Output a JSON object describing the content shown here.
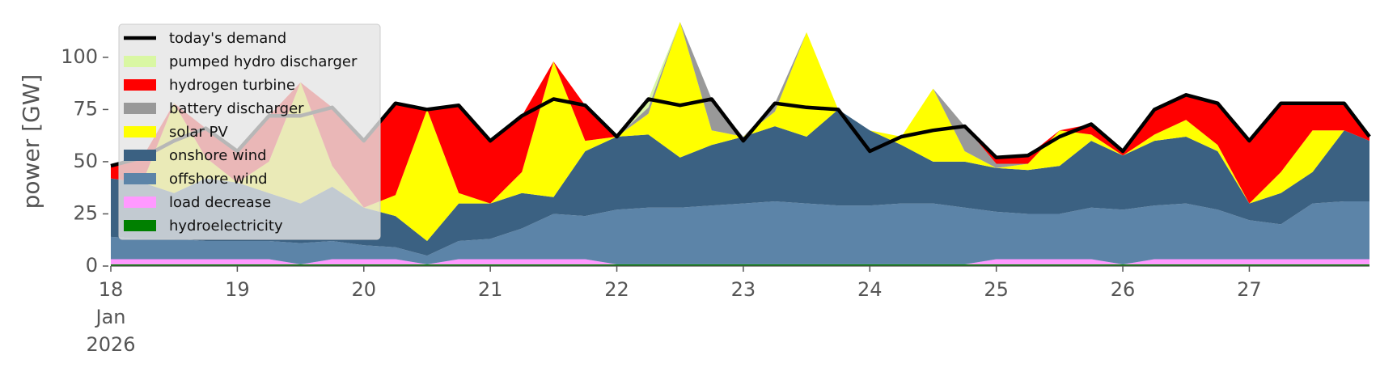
{
  "chart_data": {
    "type": "stacked_area",
    "ylabel": "power [GW]",
    "x": [
      18,
      18.25,
      18.5,
      18.75,
      19,
      19.25,
      19.5,
      19.75,
      20,
      20.25,
      20.5,
      20.75,
      21,
      21.25,
      21.5,
      21.75,
      22,
      22.25,
      22.5,
      22.75,
      23,
      23.25,
      23.5,
      23.75,
      24,
      24.25,
      24.5,
      24.75,
      25,
      25.25,
      25.5,
      25.75,
      26,
      26.25,
      26.5,
      26.75,
      27,
      27.25,
      27.5,
      27.75,
      27.95
    ],
    "xlim": [
      18,
      27.95
    ],
    "xticks": [
      {
        "value": 18,
        "label": "18\nJan\n2026"
      },
      19,
      20,
      21,
      22,
      23,
      24,
      25,
      26,
      27
    ],
    "ylim": [
      0,
      117
    ],
    "yticks": [
      0,
      25,
      50,
      75,
      100
    ],
    "legend": "upper left",
    "series": [
      {
        "name": "today's demand",
        "kind": "line",
        "color": "#000000",
        "values": [
          48,
          52,
          60,
          66,
          55,
          72,
          72,
          76,
          60,
          78,
          75,
          77,
          60,
          72,
          80,
          77,
          62,
          80,
          77,
          80,
          60,
          78,
          76,
          75,
          55,
          62,
          65,
          67,
          52,
          53,
          62,
          68,
          55,
          75,
          82,
          78,
          60,
          78,
          78,
          78,
          62
        ]
      },
      {
        "name": "pumped hydro discharger",
        "kind": "area",
        "color": "#d9f7a3",
        "values": [
          0,
          0,
          0,
          0,
          0,
          0,
          0,
          0,
          0,
          0,
          0,
          0,
          0,
          0,
          0,
          0,
          0,
          4,
          0,
          0,
          0,
          0,
          0,
          0,
          0,
          0,
          0,
          0,
          0,
          0,
          0,
          0,
          0,
          0,
          0,
          0,
          0,
          0,
          0,
          0,
          0
        ]
      },
      {
        "name": "hydrogen turbine",
        "kind": "area",
        "color": "#ff0000",
        "values": [
          6,
          12,
          0,
          14,
          15,
          22,
          0,
          28,
          32,
          44,
          0,
          42,
          30,
          27,
          0,
          17,
          0,
          0,
          0,
          0,
          0,
          0,
          0,
          0,
          0,
          0,
          0,
          0,
          3,
          4,
          0,
          5,
          2,
          12,
          12,
          20,
          30,
          33,
          13,
          13,
          2
        ]
      },
      {
        "name": "battery discharger",
        "kind": "area",
        "color": "#999999",
        "values": [
          0,
          0,
          0,
          0,
          0,
          0,
          0,
          0,
          0,
          0,
          0,
          0,
          0,
          0,
          0,
          0,
          0,
          3,
          0,
          15,
          0,
          4,
          0,
          0,
          0,
          0,
          0,
          12,
          2,
          0,
          0,
          0,
          0,
          0,
          0,
          0,
          0,
          0,
          0,
          0,
          0
        ]
      },
      {
        "name": "solar PV",
        "kind": "area",
        "color": "#ffff00",
        "values": [
          0,
          0,
          43,
          10,
          0,
          15,
          58,
          10,
          0,
          10,
          63,
          5,
          0,
          10,
          65,
          5,
          0,
          10,
          65,
          7,
          0,
          7,
          50,
          0,
          0,
          4,
          35,
          5,
          0,
          3,
          17,
          3,
          0,
          3,
          8,
          3,
          0,
          10,
          20,
          0,
          0
        ]
      },
      {
        "name": "onshore wind",
        "kind": "area",
        "color": "#3b6182",
        "values": [
          28,
          27,
          22,
          30,
          28,
          23,
          19,
          26,
          18,
          15,
          7,
          18,
          17,
          17,
          8,
          31,
          35,
          35,
          24,
          29,
          32,
          36,
          32,
          46,
          36,
          28,
          20,
          22,
          21,
          21,
          23,
          32,
          26,
          31,
          32,
          28,
          8,
          15,
          15,
          34,
          29
        ]
      },
      {
        "name": "offshore wind",
        "kind": "area",
        "color": "#5c84a8",
        "values": [
          10.7,
          9.7,
          9.7,
          8.7,
          8.7,
          8.7,
          10.2,
          8.7,
          6.7,
          5.7,
          4.2,
          8.7,
          9.7,
          14.7,
          21.7,
          20.7,
          26.2,
          27.2,
          27.2,
          28.2,
          29.2,
          30.2,
          29.2,
          28.2,
          28.2,
          29.2,
          29.2,
          27.2,
          22.7,
          21.7,
          21.7,
          24.7,
          26.2,
          25.7,
          26.7,
          23.7,
          18.7,
          16.7,
          26.7,
          27.7,
          27.7
        ]
      },
      {
        "name": "load decrease",
        "kind": "area",
        "color": "#ff99ff",
        "values": [
          2.5,
          2.5,
          2.5,
          2.5,
          2.5,
          2.5,
          0,
          2.5,
          2.5,
          2.5,
          0,
          2.5,
          2.5,
          2.5,
          2.5,
          2.5,
          0,
          0,
          0,
          0,
          0,
          0,
          0,
          0,
          0,
          0,
          0,
          0,
          2.5,
          2.5,
          2.5,
          2.5,
          0,
          2.5,
          2.5,
          2.5,
          2.5,
          2.5,
          2.5,
          2.5,
          2.5
        ]
      },
      {
        "name": "hydroelectricity",
        "kind": "area",
        "color": "#008000",
        "values": [
          0.8,
          0.8,
          0.8,
          0.8,
          0.8,
          0.8,
          0.8,
          0.8,
          0.8,
          0.8,
          0.8,
          0.8,
          0.8,
          0.8,
          0.8,
          0.8,
          0.8,
          0.8,
          0.8,
          0.8,
          0.8,
          0.8,
          0.8,
          0.8,
          0.8,
          0.8,
          0.8,
          0.8,
          0.8,
          0.8,
          0.8,
          0.8,
          0.8,
          0.8,
          0.8,
          0.8,
          0.8,
          0.8,
          0.8,
          0.8,
          0.8
        ]
      }
    ]
  }
}
